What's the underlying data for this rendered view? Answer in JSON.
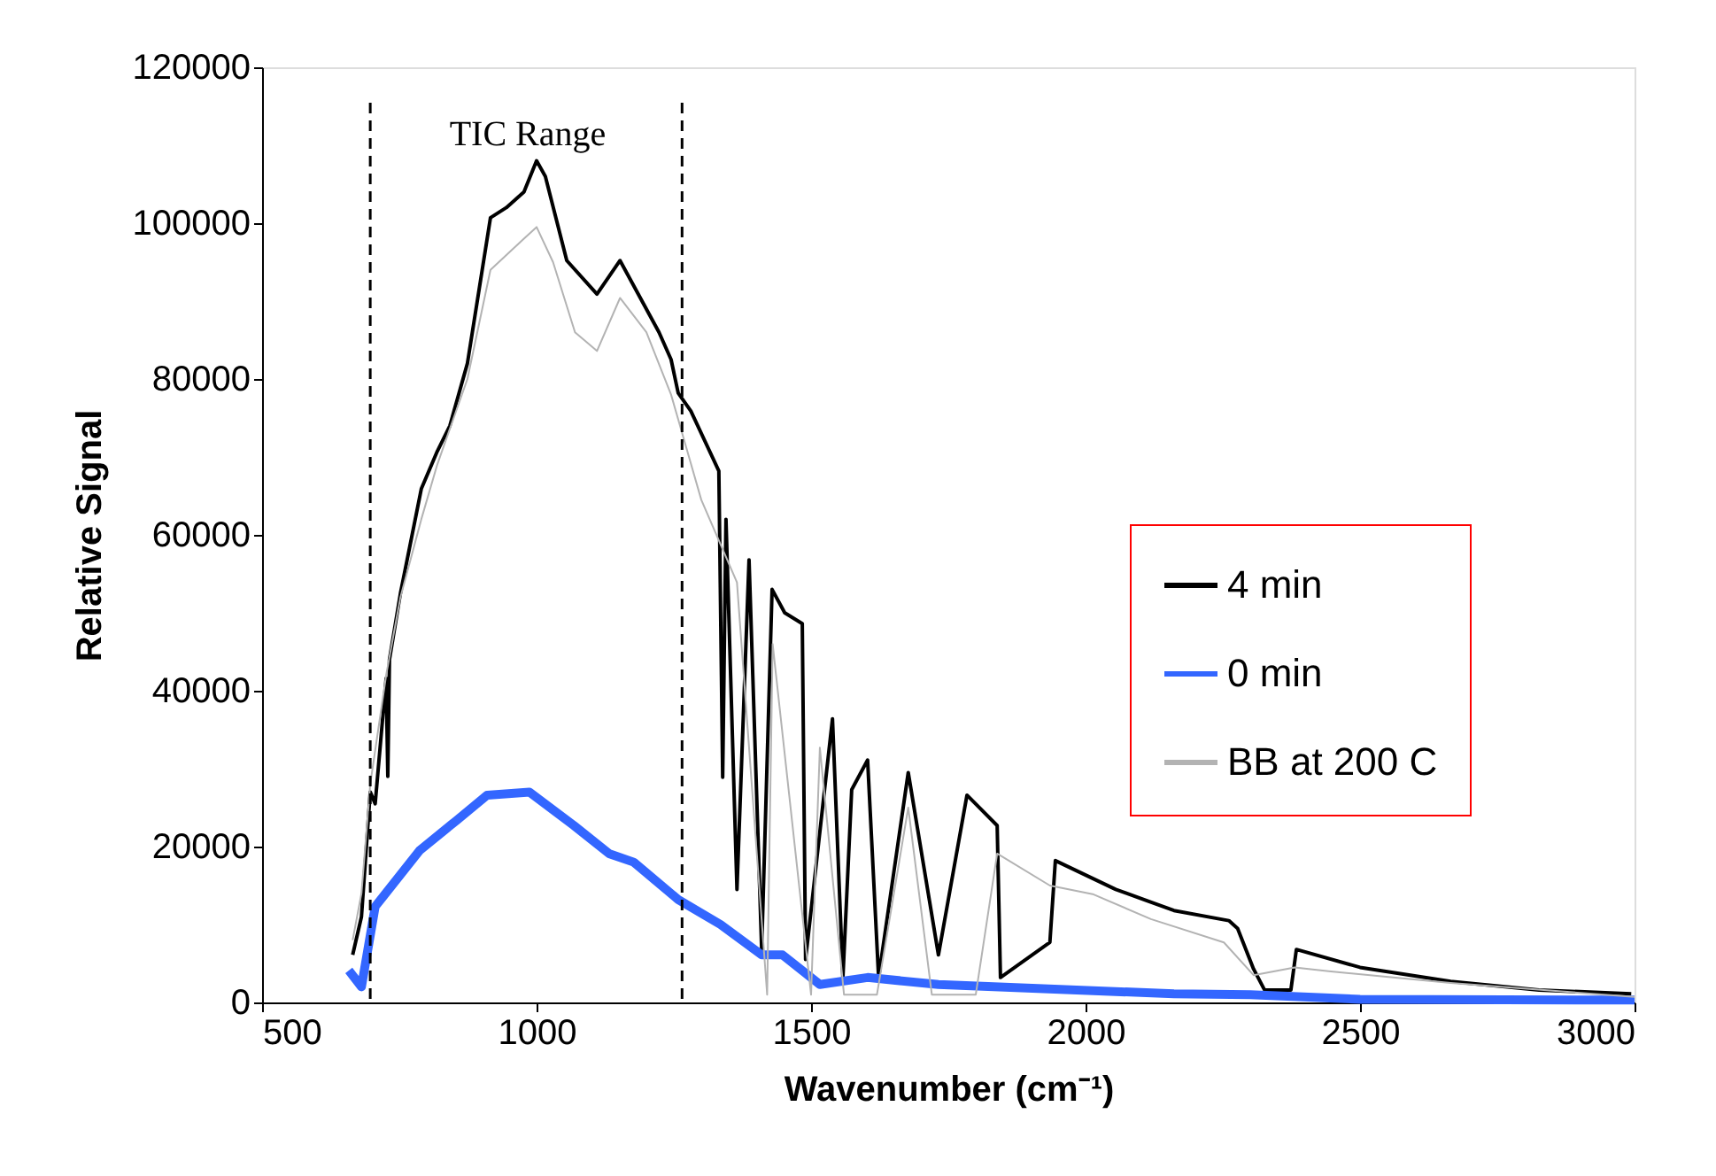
{
  "chart_data": {
    "type": "line",
    "xlabel": "Wavenumber (cm⁻¹)",
    "ylabel": "Relative Signal",
    "xlim": [
      500,
      3000
    ],
    "xticks": [
      500,
      1000,
      1500,
      2000,
      2500,
      3000
    ],
    "ylim": [
      0,
      120000
    ],
    "yticks": [
      0,
      20000,
      40000,
      60000,
      80000,
      100000,
      120000
    ],
    "grid": false,
    "legend": "right",
    "line_style": "solid",
    "marker": "none",
    "annotations": [
      "TIC Range"
    ],
    "ref_lines": [
      {
        "axis": "x",
        "value": 697,
        "color": "#000000",
        "line_style": "dashed"
      },
      {
        "axis": "x",
        "value": 1265,
        "color": "#000000",
        "line_style": "dashed"
      }
    ],
    "series": [
      {
        "name": "4 min",
        "color": "#000000",
        "x": [
          665,
          681,
          697,
          706,
          726,
          729,
          732,
          752,
          790,
          819,
          842,
          874,
          916,
          945,
          977,
          1000,
          1016,
          1055,
          1110,
          1152,
          1223,
          1245,
          1258,
          1281,
          1332,
          1339,
          1345,
          1365,
          1387,
          1410,
          1429,
          1452,
          1484,
          1490,
          1539,
          1558,
          1574,
          1603,
          1623,
          1677,
          1732,
          1784,
          1839,
          1845,
          1935,
          1945,
          2055,
          2161,
          2261,
          2277,
          2306,
          2326,
          2374,
          2384,
          2500,
          2665,
          2826,
          2994
        ],
        "values": [
          6100,
          11000,
          27000,
          25500,
          41600,
          29000,
          44000,
          52500,
          65900,
          70700,
          74000,
          82000,
          100700,
          102000,
          104000,
          108000,
          106000,
          95200,
          90900,
          95200,
          86000,
          82500,
          78200,
          75900,
          68200,
          28900,
          62000,
          14500,
          56800,
          6800,
          53000,
          50000,
          48600,
          5500,
          36400,
          3200,
          27300,
          31100,
          3200,
          29500,
          6100,
          26600,
          22700,
          3200,
          7700,
          18200,
          14500,
          11800,
          10500,
          9500,
          4300,
          1600,
          1600,
          6800,
          4500,
          2700,
          1600,
          1100
        ]
      },
      {
        "name": "0 min",
        "color": "#3366ff",
        "x": [
          658,
          681,
          706,
          787,
          855,
          910,
          987,
          1068,
          1132,
          1177,
          1258,
          1335,
          1410,
          1448,
          1516,
          1603,
          1732,
          2161,
          2300,
          2500,
          3000
        ],
        "values": [
          4100,
          2000,
          12300,
          19500,
          23400,
          26600,
          27000,
          22700,
          19100,
          18000,
          13200,
          10000,
          6100,
          6100,
          2300,
          3200,
          2300,
          1100,
          1000,
          400,
          300
        ]
      },
      {
        "name": "BB at 200 C",
        "color": "#b3b3b3",
        "x": [
          665,
          681,
          697,
          726,
          752,
          790,
          819,
          874,
          916,
          977,
          1000,
          1030,
          1070,
          1110,
          1152,
          1200,
          1245,
          1300,
          1365,
          1420,
          1430,
          1500,
          1516,
          1560,
          1620,
          1677,
          1720,
          1800,
          1839,
          1935,
          2013,
          2119,
          2252,
          2306,
          2381,
          2443,
          2665,
          3000
        ],
        "values": [
          8000,
          14000,
          28000,
          42000,
          52000,
          62000,
          69000,
          80000,
          94000,
          98000,
          99500,
          95000,
          86000,
          83600,
          90400,
          86000,
          78000,
          64500,
          53900,
          1000,
          46000,
          1000,
          32700,
          1000,
          1000,
          25000,
          1000,
          1000,
          19100,
          15000,
          13900,
          10700,
          7700,
          3500,
          4500,
          4000,
          2500,
          700
        ]
      }
    ]
  }
}
